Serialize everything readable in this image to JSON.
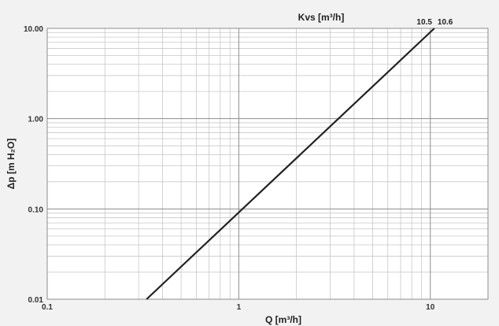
{
  "chart_data": {
    "type": "line",
    "title": "",
    "xlabel": "Q [m³/h]",
    "ylabel": "Δp [m H₂O]",
    "x_scale": "log",
    "y_scale": "log",
    "xlim": [
      0.1,
      20
    ],
    "ylim": [
      0.01,
      10
    ],
    "x_ticks": [
      {
        "value": 0.1,
        "label": "0.1"
      },
      {
        "value": 1,
        "label": "1"
      },
      {
        "value": 10,
        "label": "10"
      }
    ],
    "y_ticks": [
      {
        "value": 0.01,
        "label": "0.01"
      },
      {
        "value": 0.1,
        "label": "0.10"
      },
      {
        "value": 1,
        "label": "1.00"
      },
      {
        "value": 10,
        "label": "10.00"
      }
    ],
    "grid": true,
    "series": [
      {
        "color": "#222222",
        "points": [
          {
            "x": 0.33,
            "y": 0.01
          },
          {
            "x": 10.5,
            "y": 10.0
          }
        ]
      }
    ],
    "annotations": {
      "kvs_title": "Kvs [m³/h]",
      "kvs_values": [
        {
          "x": 10.5,
          "label": "10.5"
        },
        {
          "x": 10.6,
          "label": "10.6"
        }
      ]
    },
    "colors": {
      "background": "#f2f2f2",
      "plot_background": "#ffffff",
      "major_grid": "#8c8c8c",
      "minor_grid": "#c8c8c8",
      "line": "#222222"
    }
  }
}
